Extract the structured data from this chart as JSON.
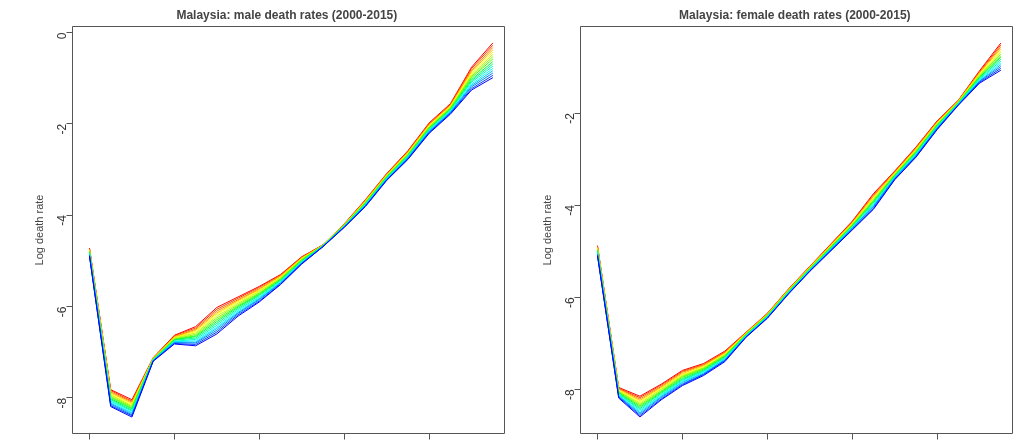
{
  "chart_data": [
    {
      "type": "line",
      "title": "Malaysia: male death rates  (2000-2015)",
      "ylabel": "Log death rate",
      "tick_labels": "y",
      "grid": false,
      "marker": "none",
      "line_style": "solid",
      "categories": [
        null,
        null,
        null,
        null,
        null,
        null,
        null,
        null,
        null,
        null,
        null,
        null,
        null,
        null,
        null,
        null,
        null,
        null,
        null,
        null
      ],
      "ylim": [
        -8.78,
        0.13
      ],
      "yticks": [
        0,
        -2,
        -4,
        -6,
        -8
      ],
      "series": [
        {
          "color": "#ff0000",
          "values": [
            -4.72,
            -7.82,
            -8.04,
            -7.12,
            -6.63,
            -6.44,
            -6.02,
            -5.79,
            -5.56,
            -5.3,
            -4.91,
            -4.65,
            -4.19,
            -3.66,
            -3.09,
            -2.59,
            -1.98,
            -1.56,
            -0.76,
            -0.23
          ]
        },
        {
          "color": "#ff4000",
          "values": [
            -4.73,
            -7.84,
            -8.07,
            -7.13,
            -6.64,
            -6.47,
            -6.06,
            -5.82,
            -5.58,
            -5.31,
            -4.92,
            -4.65,
            -4.2,
            -3.67,
            -3.1,
            -2.6,
            -2.0,
            -1.58,
            -0.79,
            -0.28
          ]
        },
        {
          "color": "#ff8000",
          "values": [
            -4.74,
            -7.87,
            -8.09,
            -7.13,
            -6.66,
            -6.5,
            -6.1,
            -5.85,
            -5.61,
            -5.33,
            -4.93,
            -4.66,
            -4.2,
            -3.68,
            -3.11,
            -2.62,
            -2.01,
            -1.59,
            -0.83,
            -0.33
          ]
        },
        {
          "color": "#ffbf00",
          "values": [
            -4.76,
            -7.89,
            -8.12,
            -7.14,
            -6.67,
            -6.52,
            -6.14,
            -5.87,
            -5.63,
            -5.34,
            -4.94,
            -4.66,
            -4.21,
            -3.69,
            -3.12,
            -2.63,
            -2.03,
            -1.61,
            -0.86,
            -0.38
          ]
        },
        {
          "color": "#ffff00",
          "values": [
            -4.77,
            -7.92,
            -8.14,
            -7.14,
            -6.68,
            -6.55,
            -6.17,
            -5.9,
            -5.65,
            -5.36,
            -4.95,
            -4.66,
            -4.21,
            -3.7,
            -3.13,
            -2.64,
            -2.04,
            -1.62,
            -0.89,
            -0.43
          ]
        },
        {
          "color": "#bfff00",
          "values": [
            -4.78,
            -7.94,
            -8.17,
            -7.15,
            -6.69,
            -6.58,
            -6.21,
            -5.93,
            -5.67,
            -5.37,
            -4.96,
            -4.66,
            -4.22,
            -3.71,
            -3.14,
            -2.65,
            -2.06,
            -1.64,
            -0.93,
            -0.48
          ]
        },
        {
          "color": "#80ff00",
          "values": [
            -4.79,
            -7.97,
            -8.19,
            -7.15,
            -6.71,
            -6.61,
            -6.25,
            -5.96,
            -5.7,
            -5.39,
            -4.97,
            -4.66,
            -4.22,
            -3.72,
            -3.15,
            -2.67,
            -2.07,
            -1.65,
            -0.96,
            -0.53
          ]
        },
        {
          "color": "#40ff00",
          "values": [
            -4.8,
            -7.99,
            -8.22,
            -7.16,
            -6.72,
            -6.64,
            -6.29,
            -5.99,
            -5.72,
            -5.4,
            -4.98,
            -4.67,
            -4.23,
            -3.73,
            -3.16,
            -2.68,
            -2.09,
            -1.67,
            -0.99,
            -0.58
          ]
        },
        {
          "color": "#00ff40",
          "values": [
            -4.82,
            -8.02,
            -8.24,
            -7.16,
            -6.73,
            -6.66,
            -6.33,
            -6.01,
            -5.74,
            -5.42,
            -5.0,
            -4.67,
            -4.23,
            -3.74,
            -3.17,
            -2.69,
            -2.1,
            -1.68,
            -1.03,
            -0.64
          ]
        },
        {
          "color": "#00ff80",
          "values": [
            -4.83,
            -8.04,
            -8.27,
            -7.17,
            -6.74,
            -6.69,
            -6.37,
            -6.04,
            -5.76,
            -5.43,
            -5.01,
            -4.67,
            -4.24,
            -3.75,
            -3.18,
            -2.7,
            -2.12,
            -1.7,
            -1.06,
            -0.69
          ]
        },
        {
          "color": "#00ffbf",
          "values": [
            -4.84,
            -8.07,
            -8.29,
            -7.17,
            -6.76,
            -6.72,
            -6.41,
            -6.07,
            -5.79,
            -5.45,
            -5.02,
            -4.68,
            -4.24,
            -3.76,
            -3.19,
            -2.72,
            -2.13,
            -1.71,
            -1.09,
            -0.74
          ]
        },
        {
          "color": "#00ffff",
          "values": [
            -4.85,
            -8.09,
            -8.32,
            -7.18,
            -6.77,
            -6.75,
            -6.45,
            -6.1,
            -5.81,
            -5.46,
            -5.03,
            -4.68,
            -4.25,
            -3.77,
            -3.2,
            -2.73,
            -2.15,
            -1.73,
            -1.13,
            -0.79
          ]
        },
        {
          "color": "#00bfff",
          "values": [
            -4.86,
            -8.12,
            -8.34,
            -7.18,
            -6.78,
            -6.78,
            -6.48,
            -6.13,
            -5.83,
            -5.48,
            -5.04,
            -4.68,
            -4.25,
            -3.78,
            -3.21,
            -2.74,
            -2.16,
            -1.74,
            -1.16,
            -0.84
          ]
        },
        {
          "color": "#0080ff",
          "values": [
            -4.88,
            -8.14,
            -8.37,
            -7.19,
            -6.79,
            -6.8,
            -6.52,
            -6.15,
            -5.85,
            -5.49,
            -5.05,
            -4.68,
            -4.26,
            -3.79,
            -3.22,
            -2.75,
            -2.18,
            -1.76,
            -1.19,
            -0.89
          ]
        },
        {
          "color": "#0040ff",
          "values": [
            -4.89,
            -8.17,
            -8.39,
            -7.19,
            -6.81,
            -6.83,
            -6.56,
            -6.18,
            -5.88,
            -5.51,
            -5.06,
            -4.69,
            -4.26,
            -3.8,
            -3.23,
            -2.77,
            -2.19,
            -1.77,
            -1.23,
            -0.94
          ]
        },
        {
          "color": "#0000ff",
          "values": [
            -4.9,
            -8.19,
            -8.42,
            -7.2,
            -6.82,
            -6.86,
            -6.6,
            -6.21,
            -5.9,
            -5.52,
            -5.07,
            -4.69,
            -4.27,
            -3.81,
            -3.24,
            -2.78,
            -2.21,
            -1.79,
            -1.26,
            -0.99
          ]
        }
      ]
    },
    {
      "type": "line",
      "title": "Malaysia: female death rates  (2000-2015)",
      "ylabel": "Log death rate",
      "tick_labels": "y",
      "grid": false,
      "marker": "none",
      "line_style": "solid",
      "categories": [
        null,
        null,
        null,
        null,
        null,
        null,
        null,
        null,
        null,
        null,
        null,
        null,
        null,
        null,
        null,
        null,
        null,
        null,
        null,
        null
      ],
      "ylim": [
        -8.96,
        -0.12
      ],
      "yticks": [
        -2,
        -4,
        -6,
        -8
      ],
      "series": [
        {
          "color": "#ff0000",
          "values": [
            -4.88,
            -7.96,
            -8.15,
            -7.89,
            -7.59,
            -7.44,
            -7.17,
            -6.76,
            -6.35,
            -5.82,
            -5.33,
            -4.84,
            -4.35,
            -3.75,
            -3.26,
            -2.74,
            -2.17,
            -1.72,
            -1.08,
            -0.48
          ]
        },
        {
          "color": "#ff4000",
          "values": [
            -4.89,
            -7.98,
            -8.18,
            -7.91,
            -7.61,
            -7.46,
            -7.19,
            -6.77,
            -6.36,
            -5.83,
            -5.34,
            -4.85,
            -4.36,
            -3.77,
            -3.27,
            -2.75,
            -2.18,
            -1.73,
            -1.1,
            -0.52
          ]
        },
        {
          "color": "#ff8000",
          "values": [
            -4.91,
            -7.99,
            -8.21,
            -7.94,
            -7.63,
            -7.47,
            -7.2,
            -6.77,
            -6.36,
            -5.83,
            -5.34,
            -4.86,
            -4.38,
            -3.8,
            -3.29,
            -2.77,
            -2.2,
            -1.73,
            -1.12,
            -0.56
          ]
        },
        {
          "color": "#ffbf00",
          "values": [
            -4.92,
            -8.01,
            -8.24,
            -7.96,
            -7.66,
            -7.49,
            -7.22,
            -6.78,
            -6.37,
            -5.84,
            -5.35,
            -4.87,
            -4.39,
            -3.82,
            -3.3,
            -2.78,
            -2.21,
            -1.74,
            -1.13,
            -0.6
          ]
        },
        {
          "color": "#ffff00",
          "values": [
            -4.94,
            -8.02,
            -8.27,
            -7.98,
            -7.68,
            -7.51,
            -7.23,
            -6.79,
            -6.38,
            -5.85,
            -5.36,
            -4.88,
            -4.4,
            -3.84,
            -3.31,
            -2.8,
            -2.22,
            -1.75,
            -1.15,
            -0.64
          ]
        },
        {
          "color": "#bfff00",
          "values": [
            -4.95,
            -8.04,
            -8.3,
            -8.0,
            -7.7,
            -7.53,
            -7.25,
            -6.8,
            -6.39,
            -5.86,
            -5.37,
            -4.89,
            -4.41,
            -3.86,
            -3.32,
            -2.81,
            -2.23,
            -1.76,
            -1.17,
            -0.68
          ]
        },
        {
          "color": "#80ff00",
          "values": [
            -4.97,
            -8.05,
            -8.33,
            -8.03,
            -7.72,
            -7.54,
            -7.26,
            -6.8,
            -6.39,
            -5.86,
            -5.37,
            -4.9,
            -4.43,
            -3.89,
            -3.34,
            -2.83,
            -2.25,
            -1.76,
            -1.19,
            -0.72
          ]
        },
        {
          "color": "#40ff00",
          "values": [
            -4.98,
            -8.07,
            -8.36,
            -8.05,
            -7.74,
            -7.56,
            -7.28,
            -6.81,
            -6.4,
            -5.87,
            -5.38,
            -4.91,
            -4.44,
            -3.91,
            -3.35,
            -2.84,
            -2.26,
            -1.77,
            -1.21,
            -0.76
          ]
        },
        {
          "color": "#00ff40",
          "values": [
            -5.0,
            -8.08,
            -8.39,
            -8.07,
            -7.77,
            -7.58,
            -7.29,
            -6.82,
            -6.41,
            -5.88,
            -5.39,
            -4.92,
            -4.45,
            -3.93,
            -3.36,
            -2.86,
            -2.27,
            -1.78,
            -1.22,
            -0.79
          ]
        },
        {
          "color": "#00ff80",
          "values": [
            -5.01,
            -8.1,
            -8.42,
            -8.09,
            -7.79,
            -7.6,
            -7.31,
            -6.83,
            -6.42,
            -5.89,
            -5.4,
            -4.93,
            -4.46,
            -3.95,
            -3.37,
            -2.87,
            -2.28,
            -1.79,
            -1.24,
            -0.83
          ]
        },
        {
          "color": "#00ffbf",
          "values": [
            -5.03,
            -8.11,
            -8.45,
            -8.12,
            -7.81,
            -7.61,
            -7.32,
            -6.83,
            -6.42,
            -5.89,
            -5.4,
            -4.94,
            -4.48,
            -3.98,
            -3.39,
            -2.89,
            -2.3,
            -1.79,
            -1.26,
            -0.87
          ]
        },
        {
          "color": "#00ffff",
          "values": [
            -5.04,
            -8.13,
            -8.48,
            -8.14,
            -7.83,
            -7.63,
            -7.34,
            -6.84,
            -6.43,
            -5.9,
            -5.41,
            -4.95,
            -4.49,
            -4.0,
            -3.4,
            -2.9,
            -2.31,
            -1.8,
            -1.28,
            -0.91
          ]
        },
        {
          "color": "#00bfff",
          "values": [
            -5.06,
            -8.14,
            -8.51,
            -8.16,
            -7.85,
            -7.65,
            -7.35,
            -6.85,
            -6.44,
            -5.91,
            -5.42,
            -4.96,
            -4.5,
            -4.02,
            -3.41,
            -2.92,
            -2.32,
            -1.81,
            -1.3,
            -0.95
          ]
        },
        {
          "color": "#0080ff",
          "values": [
            -5.07,
            -8.16,
            -8.54,
            -8.18,
            -7.88,
            -7.67,
            -7.37,
            -6.86,
            -6.45,
            -5.92,
            -5.43,
            -4.97,
            -4.51,
            -4.04,
            -3.42,
            -2.93,
            -2.33,
            -1.82,
            -1.31,
            -0.99
          ]
        },
        {
          "color": "#0040ff",
          "values": [
            -5.09,
            -8.17,
            -8.57,
            -8.21,
            -7.9,
            -7.68,
            -7.38,
            -6.86,
            -6.45,
            -5.92,
            -5.43,
            -4.98,
            -4.53,
            -4.07,
            -3.44,
            -2.95,
            -2.35,
            -1.82,
            -1.33,
            -1.03
          ]
        },
        {
          "color": "#0000ff",
          "values": [
            -5.1,
            -8.19,
            -8.6,
            -8.23,
            -7.92,
            -7.7,
            -7.4,
            -6.87,
            -6.46,
            -5.93,
            -5.44,
            -4.99,
            -4.54,
            -4.09,
            -3.45,
            -2.96,
            -2.36,
            -1.83,
            -1.35,
            -1.07
          ]
        }
      ]
    }
  ]
}
